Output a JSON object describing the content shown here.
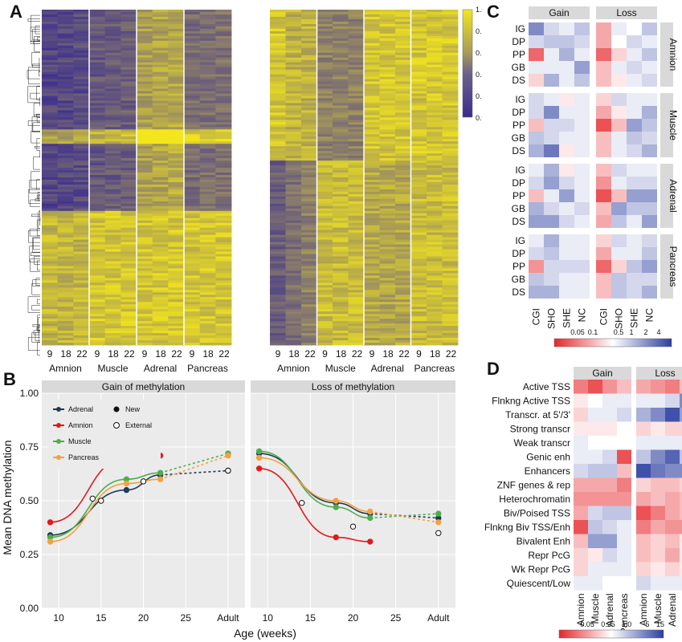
{
  "panels": {
    "a": "A",
    "b": "B",
    "c": "C",
    "d": "D"
  },
  "colors": {
    "heat_low": "#3b2d8f",
    "heat_mid": "#8c7f6a",
    "heat_high": "#f3e61d",
    "adrenal": "#1f3b57",
    "amnion": "#e31a1c",
    "muscle": "#4daf4a",
    "pancreas": "#f5a040",
    "ggplot_bg": "#ebebeb",
    "strip_bg": "#d9d9d9",
    "div_neg": "#e6262a",
    "div_pos": "#2b3ea0"
  },
  "panelA": {
    "colorbar_ticks": [
      "1.0",
      "0.8",
      "0.6",
      "0.4",
      "0.2",
      "0.0"
    ],
    "col_groups": [
      "Amnion",
      "Muscle",
      "Adrenal",
      "Pancreas"
    ],
    "col_ticks": [
      "9",
      "18",
      "22"
    ]
  },
  "chart_data": [
    {
      "type": "line",
      "panel": "B",
      "facets": [
        "Gain of methylation",
        "Loss of methylation"
      ],
      "xlabel": "Age (weeks)",
      "ylabel": "Mean DNA methylation",
      "x_ticks": [
        "10",
        "15",
        "20",
        "25",
        "Adult"
      ],
      "y_ticks": [
        "0.00",
        "0.25",
        "0.50",
        "0.75",
        "1.00"
      ],
      "xlim": [
        8,
        32
      ],
      "ylim": [
        0,
        1
      ],
      "legend": {
        "series": [
          "Adrenal",
          "Amnion",
          "Muscle",
          "Pancreas"
        ],
        "shapes": [
          "New",
          "External"
        ],
        "placement": "top-left"
      },
      "series": [
        {
          "name": "Adrenal",
          "facet": "Gain of methylation",
          "points": [
            [
              9,
              0.34
            ],
            [
              18,
              0.55
            ],
            [
              22,
              0.62
            ]
          ],
          "adult": 0.64
        },
        {
          "name": "Amnion",
          "facet": "Gain of methylation",
          "points": [
            [
              9,
              0.4
            ],
            [
              18,
              0.7
            ],
            [
              22,
              0.71
            ]
          ]
        },
        {
          "name": "Muscle",
          "facet": "Gain of methylation",
          "points": [
            [
              9,
              0.33
            ],
            [
              18,
              0.6
            ],
            [
              22,
              0.63
            ]
          ],
          "adult": 0.72
        },
        {
          "name": "Pancreas",
          "facet": "Gain of methylation",
          "points": [
            [
              9,
              0.31
            ],
            [
              18,
              0.58
            ],
            [
              22,
              0.6
            ]
          ],
          "adult": 0.71
        },
        {
          "name": "External",
          "facet": "Gain of methylation",
          "points": [
            [
              14,
              0.51
            ],
            [
              15,
              0.5
            ],
            [
              20,
              0.59
            ]
          ],
          "adult": 0.64
        },
        {
          "name": "Adrenal",
          "facet": "Loss of methylation",
          "points": [
            [
              9,
              0.72
            ],
            [
              18,
              0.49
            ],
            [
              22,
              0.44
            ]
          ],
          "adult": 0.42
        },
        {
          "name": "Amnion",
          "facet": "Loss of methylation",
          "points": [
            [
              9,
              0.65
            ],
            [
              18,
              0.33
            ],
            [
              22,
              0.31
            ]
          ]
        },
        {
          "name": "Muscle",
          "facet": "Loss of methylation",
          "points": [
            [
              9,
              0.73
            ],
            [
              18,
              0.47
            ],
            [
              22,
              0.42
            ]
          ],
          "adult": 0.44
        },
        {
          "name": "Pancreas",
          "facet": "Loss of methylation",
          "points": [
            [
              9,
              0.7
            ],
            [
              18,
              0.5
            ],
            [
              22,
              0.45
            ]
          ],
          "adult": 0.4
        },
        {
          "name": "External",
          "facet": "Loss of methylation",
          "points": [
            [
              14,
              0.49
            ],
            [
              20,
              0.38
            ]
          ],
          "adult": 0.35
        }
      ]
    },
    {
      "type": "heatmap",
      "panel": "C",
      "facets_x": [
        "Gain",
        "Loss"
      ],
      "facets_y": [
        "Amnion",
        "Muscle",
        "Adrenal",
        "Pancreas"
      ],
      "rows": [
        "IG",
        "DP",
        "PP",
        "GB",
        "DS"
      ],
      "cols": [
        "CGI",
        "SHO",
        "SHE",
        "NC"
      ],
      "scale_ticks": [
        "0.05",
        "0.1",
        "0.5",
        "1",
        "2",
        "4"
      ],
      "values": {
        "Gain": {
          "Amnion": [
            [
              0.6,
              0.2,
              0.1,
              0.3
            ],
            [
              0.2,
              0.3,
              0.3,
              0.2
            ],
            [
              -0.7,
              0.1,
              0.4,
              0.1
            ],
            [
              0.1,
              0.1,
              0.1,
              0.5
            ],
            [
              -0.2,
              0.4,
              0.1,
              0.3
            ]
          ],
          "Muscle": [
            [
              0.2,
              0.1,
              -0.1,
              0.1
            ],
            [
              0.2,
              0.6,
              0.1,
              0.1
            ],
            [
              -0.3,
              0.2,
              0.2,
              0.1
            ],
            [
              0.3,
              0.2,
              0.1,
              0.1
            ],
            [
              0.4,
              0.7,
              -0.1,
              0.1
            ]
          ],
          "Adrenal": [
            [
              0.1,
              0.4,
              -0.1,
              0.1
            ],
            [
              0.2,
              0.5,
              0.2,
              0.1
            ],
            [
              -0.3,
              0.1,
              0.5,
              0.1
            ],
            [
              0.4,
              0.2,
              0.1,
              0.2
            ],
            [
              0.5,
              0.5,
              0.2,
              0.1
            ]
          ],
          "Pancreas": [
            [
              0.1,
              0.4,
              0.1,
              0.1
            ],
            [
              0.2,
              0.3,
              0.1,
              0.1
            ],
            [
              -0.5,
              0.2,
              0.2,
              0.2
            ],
            [
              0.3,
              0.2,
              0.1,
              0.1
            ],
            [
              0.4,
              0.4,
              0.1,
              0.1
            ]
          ]
        },
        "Loss": {
          "Amnion": [
            [
              -0.4,
              0.1,
              0.0,
              0.3
            ],
            [
              -0.4,
              0.0,
              0.2,
              0.1
            ],
            [
              -0.7,
              -0.2,
              0.1,
              0.3
            ],
            [
              -0.3,
              0.1,
              0.2,
              0.1
            ],
            [
              -0.3,
              -0.1,
              0.1,
              0.2
            ]
          ],
          "Muscle": [
            [
              -0.2,
              0.2,
              0.1,
              0.1
            ],
            [
              -0.4,
              -0.1,
              0.1,
              0.4
            ],
            [
              -0.8,
              -0.3,
              0.5,
              0.3
            ],
            [
              -0.3,
              0.1,
              0.3,
              0.2
            ],
            [
              -0.3,
              0.1,
              0.2,
              0.4
            ]
          ],
          "Adrenal": [
            [
              -0.3,
              0.2,
              0.1,
              0.1
            ],
            [
              -0.5,
              0.1,
              0.2,
              0.2
            ],
            [
              -0.8,
              -0.3,
              0.5,
              0.5
            ],
            [
              -0.3,
              0.5,
              0.3,
              0.3
            ],
            [
              -0.4,
              0.3,
              0.1,
              0.5
            ]
          ],
          "Pancreas": [
            [
              -0.2,
              0.2,
              0.1,
              0.2
            ],
            [
              -0.4,
              0.1,
              0.1,
              0.3
            ],
            [
              -0.7,
              -0.2,
              0.3,
              0.5
            ],
            [
              -0.3,
              0.3,
              0.2,
              0.2
            ],
            [
              -0.3,
              0.3,
              0.2,
              0.4
            ]
          ]
        }
      }
    },
    {
      "type": "heatmap",
      "panel": "D",
      "facets_x": [
        "Gain",
        "Loss"
      ],
      "rows": [
        "Active TSS",
        "Flnkng Active TSS",
        "Transcr. at 5'/3'",
        "Strong transcr",
        "Weak transcr",
        "Genic enh",
        "Enhancers",
        "ZNF genes & rep",
        "Heterochromatin",
        "Biv/Poised TSS",
        "Flnkng Biv TSS/Enh",
        "Bivalent Enh",
        "Repr PcG",
        "Wk Repr PcG",
        "Quiescent/Low"
      ],
      "cols": [
        "Amnion",
        "Muscle",
        "Adrenal",
        "Pancreas"
      ],
      "scale_ticks": [
        "0.05",
        "0.25",
        "1.0",
        "5",
        "15"
      ],
      "values": {
        "Gain": [
          [
            -0.6,
            -0.8,
            -0.5,
            -0.3
          ],
          [
            -0.1,
            0.0,
            0.1,
            0.1
          ],
          [
            -0.2,
            0.1,
            0.1,
            0.2
          ],
          [
            -0.1,
            -0.1,
            -0.1,
            0.0
          ],
          [
            0.1,
            0.0,
            0.0,
            0.0
          ],
          [
            0.1,
            0.1,
            0.2,
            -0.8
          ],
          [
            0.2,
            0.3,
            0.3,
            -0.3
          ],
          [
            -0.4,
            -0.4,
            -0.4,
            -0.6
          ],
          [
            -0.5,
            -0.5,
            -0.5,
            -0.5
          ],
          [
            -0.4,
            0.2,
            0.3,
            0.3
          ],
          [
            -0.8,
            0.3,
            0.2,
            0.1
          ],
          [
            -0.3,
            0.5,
            0.5,
            0.1
          ],
          [
            -0.2,
            -0.1,
            0.2,
            0.1
          ],
          [
            -0.2,
            0.1,
            0.1,
            0.1
          ],
          [
            0.1,
            0.1,
            0.0,
            0.0
          ]
        ],
        "Loss": [
          [
            -0.4,
            -0.5,
            -0.6,
            -0.3
          ],
          [
            0.1,
            0.1,
            0.2,
            0.6
          ],
          [
            0.4,
            0.6,
            0.9,
            0.5
          ],
          [
            -0.2,
            -0.1,
            -0.2,
            -0.2
          ],
          [
            0.1,
            0.1,
            0.1,
            0.1
          ],
          [
            0.3,
            0.6,
            0.8,
            0.3
          ],
          [
            0.9,
            0.7,
            0.6,
            0.6
          ],
          [
            -0.2,
            -0.3,
            -0.3,
            -0.2
          ],
          [
            -0.4,
            -0.3,
            -0.4,
            -0.3
          ],
          [
            -0.8,
            -0.6,
            -0.4,
            -0.3
          ],
          [
            -0.6,
            -0.4,
            -0.5,
            -0.5
          ],
          [
            -0.3,
            -0.2,
            -0.3,
            -0.1
          ],
          [
            -0.3,
            -0.2,
            -0.4,
            -0.1
          ],
          [
            -0.2,
            -0.1,
            -0.2,
            -0.1
          ],
          [
            0.2,
            0.1,
            0.1,
            0.1
          ]
        ]
      }
    }
  ]
}
